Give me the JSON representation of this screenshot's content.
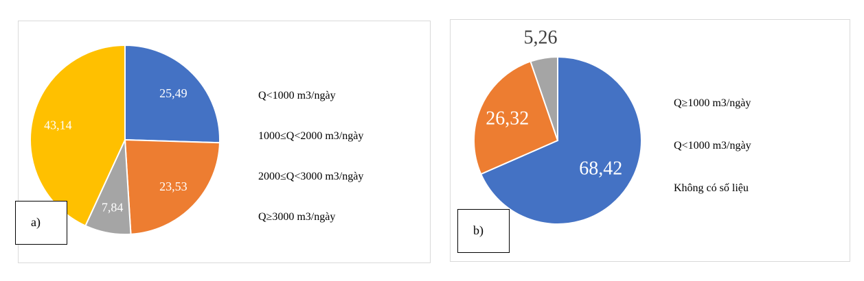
{
  "chart_data": [
    {
      "type": "pie",
      "panel_label": "a)",
      "slices": [
        {
          "label": "Q<1000 m3/ngày",
          "value": 25.49,
          "value_text": "25,49",
          "color": "#4472C4"
        },
        {
          "label": "1000≤Q<2000 m3/ngày",
          "value": 23.53,
          "value_text": "23,53",
          "color": "#ED7D31"
        },
        {
          "label": "2000≤Q<3000 m3/ngày",
          "value": 7.84,
          "value_text": "7,84",
          "color": "#A5A5A5"
        },
        {
          "label": "Q≥3000 m3/ngày",
          "value": 43.14,
          "value_text": "43,14",
          "color": "#FFC000"
        }
      ],
      "legend_position": "right"
    },
    {
      "type": "pie",
      "panel_label": "b)",
      "slices": [
        {
          "label": "Q≥1000 m3/ngày",
          "value": 68.42,
          "value_text": "68,42",
          "color": "#4472C4"
        },
        {
          "label": "Q<1000 m3/ngày",
          "value": 26.32,
          "value_text": "26,32",
          "color": "#ED7D31"
        },
        {
          "label": "Không có số liệu",
          "value": 5.26,
          "value_text": "5,26",
          "color": "#A5A5A5"
        }
      ],
      "legend_position": "right"
    }
  ]
}
